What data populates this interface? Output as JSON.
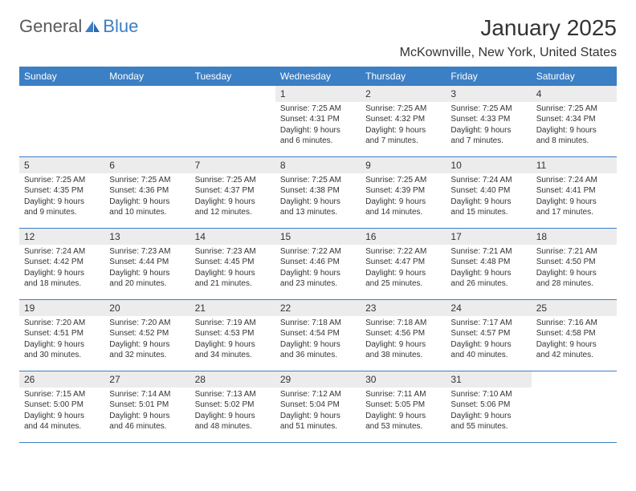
{
  "brand": {
    "text1": "General",
    "text2": "Blue"
  },
  "title": "January 2025",
  "location": "McKownville, New York, United States",
  "colors": {
    "header_bg": "#3b7fc4",
    "header_text": "#ffffff",
    "daynum_bg": "#ececec",
    "text": "#333333",
    "logo_gray": "#5a5a5a",
    "logo_blue": "#3b7fc4"
  },
  "days_of_week": [
    "Sunday",
    "Monday",
    "Tuesday",
    "Wednesday",
    "Thursday",
    "Friday",
    "Saturday"
  ],
  "weeks": [
    [
      {
        "n": "",
        "sr": "",
        "ss": "",
        "dl1": "",
        "dl2": ""
      },
      {
        "n": "",
        "sr": "",
        "ss": "",
        "dl1": "",
        "dl2": ""
      },
      {
        "n": "",
        "sr": "",
        "ss": "",
        "dl1": "",
        "dl2": ""
      },
      {
        "n": "1",
        "sr": "Sunrise: 7:25 AM",
        "ss": "Sunset: 4:31 PM",
        "dl1": "Daylight: 9 hours",
        "dl2": "and 6 minutes."
      },
      {
        "n": "2",
        "sr": "Sunrise: 7:25 AM",
        "ss": "Sunset: 4:32 PM",
        "dl1": "Daylight: 9 hours",
        "dl2": "and 7 minutes."
      },
      {
        "n": "3",
        "sr": "Sunrise: 7:25 AM",
        "ss": "Sunset: 4:33 PM",
        "dl1": "Daylight: 9 hours",
        "dl2": "and 7 minutes."
      },
      {
        "n": "4",
        "sr": "Sunrise: 7:25 AM",
        "ss": "Sunset: 4:34 PM",
        "dl1": "Daylight: 9 hours",
        "dl2": "and 8 minutes."
      }
    ],
    [
      {
        "n": "5",
        "sr": "Sunrise: 7:25 AM",
        "ss": "Sunset: 4:35 PM",
        "dl1": "Daylight: 9 hours",
        "dl2": "and 9 minutes."
      },
      {
        "n": "6",
        "sr": "Sunrise: 7:25 AM",
        "ss": "Sunset: 4:36 PM",
        "dl1": "Daylight: 9 hours",
        "dl2": "and 10 minutes."
      },
      {
        "n": "7",
        "sr": "Sunrise: 7:25 AM",
        "ss": "Sunset: 4:37 PM",
        "dl1": "Daylight: 9 hours",
        "dl2": "and 12 minutes."
      },
      {
        "n": "8",
        "sr": "Sunrise: 7:25 AM",
        "ss": "Sunset: 4:38 PM",
        "dl1": "Daylight: 9 hours",
        "dl2": "and 13 minutes."
      },
      {
        "n": "9",
        "sr": "Sunrise: 7:25 AM",
        "ss": "Sunset: 4:39 PM",
        "dl1": "Daylight: 9 hours",
        "dl2": "and 14 minutes."
      },
      {
        "n": "10",
        "sr": "Sunrise: 7:24 AM",
        "ss": "Sunset: 4:40 PM",
        "dl1": "Daylight: 9 hours",
        "dl2": "and 15 minutes."
      },
      {
        "n": "11",
        "sr": "Sunrise: 7:24 AM",
        "ss": "Sunset: 4:41 PM",
        "dl1": "Daylight: 9 hours",
        "dl2": "and 17 minutes."
      }
    ],
    [
      {
        "n": "12",
        "sr": "Sunrise: 7:24 AM",
        "ss": "Sunset: 4:42 PM",
        "dl1": "Daylight: 9 hours",
        "dl2": "and 18 minutes."
      },
      {
        "n": "13",
        "sr": "Sunrise: 7:23 AM",
        "ss": "Sunset: 4:44 PM",
        "dl1": "Daylight: 9 hours",
        "dl2": "and 20 minutes."
      },
      {
        "n": "14",
        "sr": "Sunrise: 7:23 AM",
        "ss": "Sunset: 4:45 PM",
        "dl1": "Daylight: 9 hours",
        "dl2": "and 21 minutes."
      },
      {
        "n": "15",
        "sr": "Sunrise: 7:22 AM",
        "ss": "Sunset: 4:46 PM",
        "dl1": "Daylight: 9 hours",
        "dl2": "and 23 minutes."
      },
      {
        "n": "16",
        "sr": "Sunrise: 7:22 AM",
        "ss": "Sunset: 4:47 PM",
        "dl1": "Daylight: 9 hours",
        "dl2": "and 25 minutes."
      },
      {
        "n": "17",
        "sr": "Sunrise: 7:21 AM",
        "ss": "Sunset: 4:48 PM",
        "dl1": "Daylight: 9 hours",
        "dl2": "and 26 minutes."
      },
      {
        "n": "18",
        "sr": "Sunrise: 7:21 AM",
        "ss": "Sunset: 4:50 PM",
        "dl1": "Daylight: 9 hours",
        "dl2": "and 28 minutes."
      }
    ],
    [
      {
        "n": "19",
        "sr": "Sunrise: 7:20 AM",
        "ss": "Sunset: 4:51 PM",
        "dl1": "Daylight: 9 hours",
        "dl2": "and 30 minutes."
      },
      {
        "n": "20",
        "sr": "Sunrise: 7:20 AM",
        "ss": "Sunset: 4:52 PM",
        "dl1": "Daylight: 9 hours",
        "dl2": "and 32 minutes."
      },
      {
        "n": "21",
        "sr": "Sunrise: 7:19 AM",
        "ss": "Sunset: 4:53 PM",
        "dl1": "Daylight: 9 hours",
        "dl2": "and 34 minutes."
      },
      {
        "n": "22",
        "sr": "Sunrise: 7:18 AM",
        "ss": "Sunset: 4:54 PM",
        "dl1": "Daylight: 9 hours",
        "dl2": "and 36 minutes."
      },
      {
        "n": "23",
        "sr": "Sunrise: 7:18 AM",
        "ss": "Sunset: 4:56 PM",
        "dl1": "Daylight: 9 hours",
        "dl2": "and 38 minutes."
      },
      {
        "n": "24",
        "sr": "Sunrise: 7:17 AM",
        "ss": "Sunset: 4:57 PM",
        "dl1": "Daylight: 9 hours",
        "dl2": "and 40 minutes."
      },
      {
        "n": "25",
        "sr": "Sunrise: 7:16 AM",
        "ss": "Sunset: 4:58 PM",
        "dl1": "Daylight: 9 hours",
        "dl2": "and 42 minutes."
      }
    ],
    [
      {
        "n": "26",
        "sr": "Sunrise: 7:15 AM",
        "ss": "Sunset: 5:00 PM",
        "dl1": "Daylight: 9 hours",
        "dl2": "and 44 minutes."
      },
      {
        "n": "27",
        "sr": "Sunrise: 7:14 AM",
        "ss": "Sunset: 5:01 PM",
        "dl1": "Daylight: 9 hours",
        "dl2": "and 46 minutes."
      },
      {
        "n": "28",
        "sr": "Sunrise: 7:13 AM",
        "ss": "Sunset: 5:02 PM",
        "dl1": "Daylight: 9 hours",
        "dl2": "and 48 minutes."
      },
      {
        "n": "29",
        "sr": "Sunrise: 7:12 AM",
        "ss": "Sunset: 5:04 PM",
        "dl1": "Daylight: 9 hours",
        "dl2": "and 51 minutes."
      },
      {
        "n": "30",
        "sr": "Sunrise: 7:11 AM",
        "ss": "Sunset: 5:05 PM",
        "dl1": "Daylight: 9 hours",
        "dl2": "and 53 minutes."
      },
      {
        "n": "31",
        "sr": "Sunrise: 7:10 AM",
        "ss": "Sunset: 5:06 PM",
        "dl1": "Daylight: 9 hours",
        "dl2": "and 55 minutes."
      },
      {
        "n": "",
        "sr": "",
        "ss": "",
        "dl1": "",
        "dl2": ""
      }
    ]
  ]
}
